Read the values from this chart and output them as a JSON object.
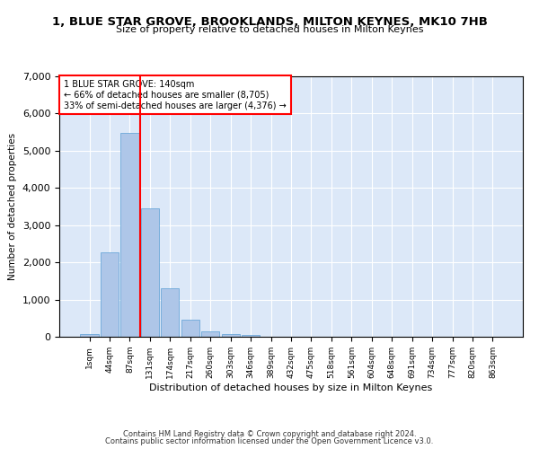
{
  "title": "1, BLUE STAR GROVE, BROOKLANDS, MILTON KEYNES, MK10 7HB",
  "subtitle": "Size of property relative to detached houses in Milton Keynes",
  "xlabel": "Distribution of detached houses by size in Milton Keynes",
  "ylabel": "Number of detached properties",
  "footer_line1": "Contains HM Land Registry data © Crown copyright and database right 2024.",
  "footer_line2": "Contains public sector information licensed under the Open Government Licence v3.0.",
  "bar_labels": [
    "1sqm",
    "44sqm",
    "87sqm",
    "131sqm",
    "174sqm",
    "217sqm",
    "260sqm",
    "303sqm",
    "346sqm",
    "389sqm",
    "432sqm",
    "475sqm",
    "518sqm",
    "561sqm",
    "604sqm",
    "648sqm",
    "691sqm",
    "734sqm",
    "777sqm",
    "820sqm",
    "863sqm"
  ],
  "bar_values": [
    75,
    2280,
    5480,
    3440,
    1310,
    470,
    155,
    80,
    50,
    0,
    0,
    0,
    0,
    0,
    0,
    0,
    0,
    0,
    0,
    0,
    0
  ],
  "bar_color": "#aec6e8",
  "bar_edge_color": "#5a9fd4",
  "background_color": "#dce8f8",
  "grid_color": "#ffffff",
  "vline_color": "red",
  "annotation_text": "1 BLUE STAR GROVE: 140sqm\n← 66% of detached houses are smaller (8,705)\n33% of semi-detached houses are larger (4,376) →",
  "annotation_box_color": "white",
  "annotation_box_edge_color": "red",
  "ylim": [
    0,
    7000
  ],
  "yticks": [
    0,
    1000,
    2000,
    3000,
    4000,
    5000,
    6000,
    7000
  ],
  "vline_position": 2.5
}
